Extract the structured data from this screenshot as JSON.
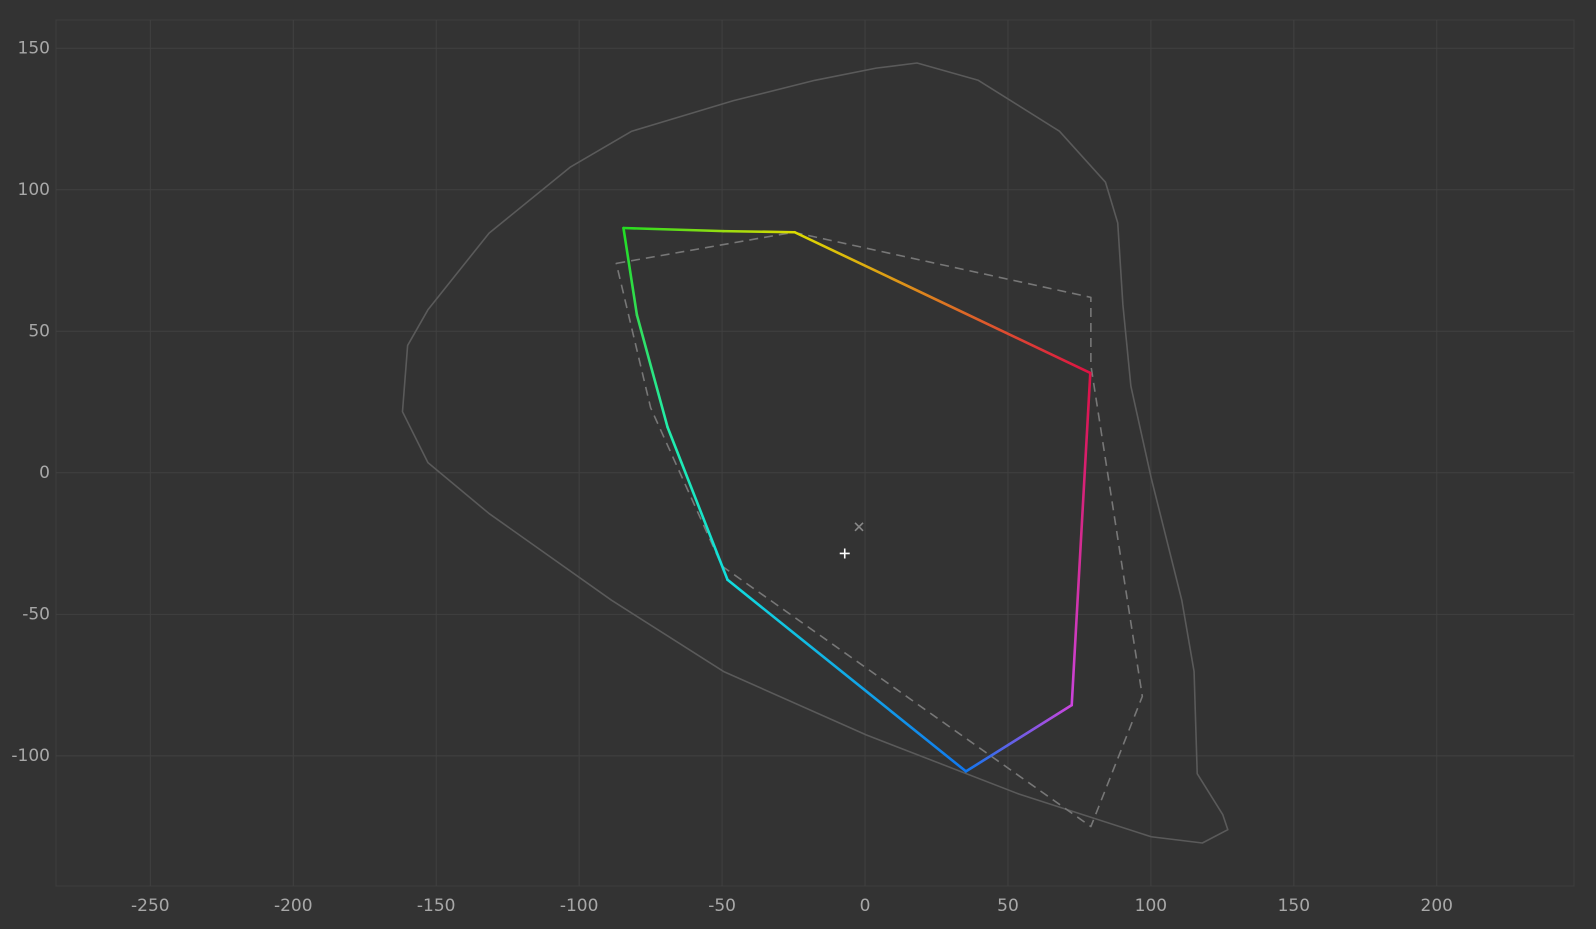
{
  "chart_data": {
    "type": "gamut",
    "xlim": [
      -283,
      248
    ],
    "ylim": [
      -146,
      160
    ],
    "xticks": [
      -250,
      -200,
      -150,
      -100,
      -50,
      0,
      50,
      100,
      150,
      200
    ],
    "yticks": [
      -100,
      -50,
      0,
      50,
      100,
      150
    ],
    "grid": true,
    "series": [
      {
        "style": "solid",
        "color": "#5a5a5a",
        "closed": true,
        "x": [
          18.2,
          39.6,
          68,
          84.1,
          88.4,
          90.2,
          93,
          100.1,
          110.8,
          115.1,
          116.2,
          125.1,
          126.9,
          118,
          100.1,
          53.8,
          0.4,
          -49.5,
          -88.7,
          -131.5,
          -152.9,
          -161.8,
          -160,
          -152.9,
          -131.5,
          -103,
          -81.6,
          -46,
          -17.5,
          3.9
        ],
        "y": [
          144.8,
          138.7,
          120.7,
          102.7,
          88.3,
          59.4,
          30.6,
          -1.8,
          -45,
          -70.2,
          -106.3,
          -120.7,
          -126.1,
          -130.8,
          -128.6,
          -113.5,
          -92.6,
          -70.2,
          -45,
          -14.4,
          3.6,
          21.6,
          45,
          57.6,
          84.7,
          108.1,
          120.7,
          131.5,
          138.7,
          143
        ]
      },
      {
        "style": "dashed",
        "color": "#777777",
        "closed": true,
        "x": [
          -87,
          -25,
          79,
          79,
          97,
          79,
          -50,
          -75
        ],
        "y": [
          74,
          85,
          62,
          38,
          -79,
          -125,
          -33,
          23
        ]
      },
      {
        "style": "gradient",
        "closed": true,
        "x": [
          -84.5,
          -49.5,
          -24.6,
          78.8,
          72.3,
          35.3,
          -48.1,
          -69.1,
          -79.8
        ],
        "y": [
          86.5,
          85.4,
          85,
          35.3,
          -82.1,
          -105.5,
          -37.8,
          16.2,
          55.8
        ],
        "colors": [
          "#22dd22",
          "#99dd11",
          "#dddd00",
          "#dd1144",
          "#cc44dd",
          "#1177ee",
          "#11dddd",
          "#22eeaa",
          "#33dd55"
        ]
      },
      {
        "style": "marker",
        "marker": "plus",
        "color": "#ffffff",
        "x": [
          -7.1
        ],
        "y": [
          -28.5
        ]
      },
      {
        "style": "marker",
        "marker": "cross",
        "color": "#888888",
        "x": [
          -2.1
        ],
        "y": [
          -19.1
        ]
      }
    ]
  }
}
